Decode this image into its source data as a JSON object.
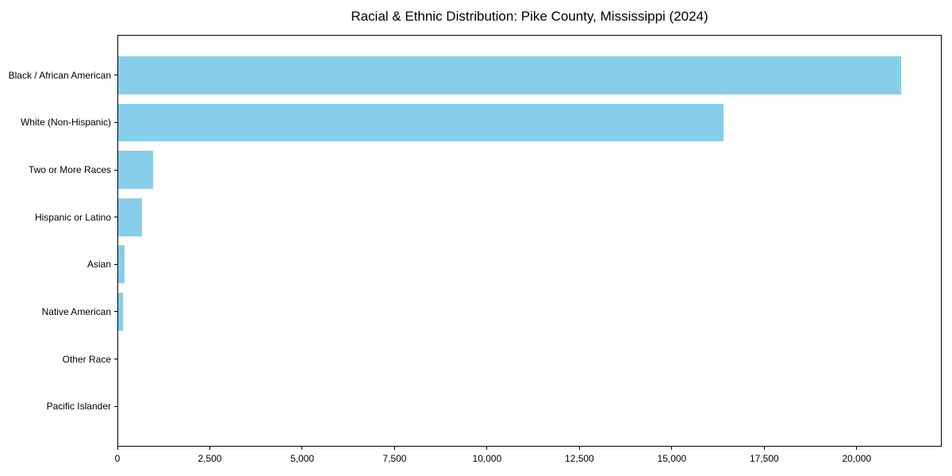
{
  "chart_data": {
    "type": "bar",
    "orientation": "horizontal",
    "title": "Racial & Ethnic Distribution: Pike County, Mississippi (2024)",
    "categories": [
      "Black / African American",
      "White (Non-Hispanic)",
      "Two or More Races",
      "Hispanic or Latino",
      "Asian",
      "Native American",
      "Other Race",
      "Pacific Islander"
    ],
    "values": [
      21200,
      16400,
      970,
      670,
      190,
      160,
      25,
      10
    ],
    "xlabel": "",
    "ylabel": "",
    "xlim": [
      0,
      22300
    ],
    "xticks": [
      0,
      2500,
      5000,
      7500,
      10000,
      12500,
      15000,
      17500,
      20000
    ],
    "xtick_labels": [
      "0",
      "2,500",
      "5,000",
      "7,500",
      "10,000",
      "12,500",
      "15,000",
      "17,500",
      "20,000"
    ],
    "bar_color": "#87CEEB",
    "axis_color": "#000000",
    "text_color": "#000000",
    "background_color": "#ffffff",
    "grid": false,
    "legend": null
  }
}
